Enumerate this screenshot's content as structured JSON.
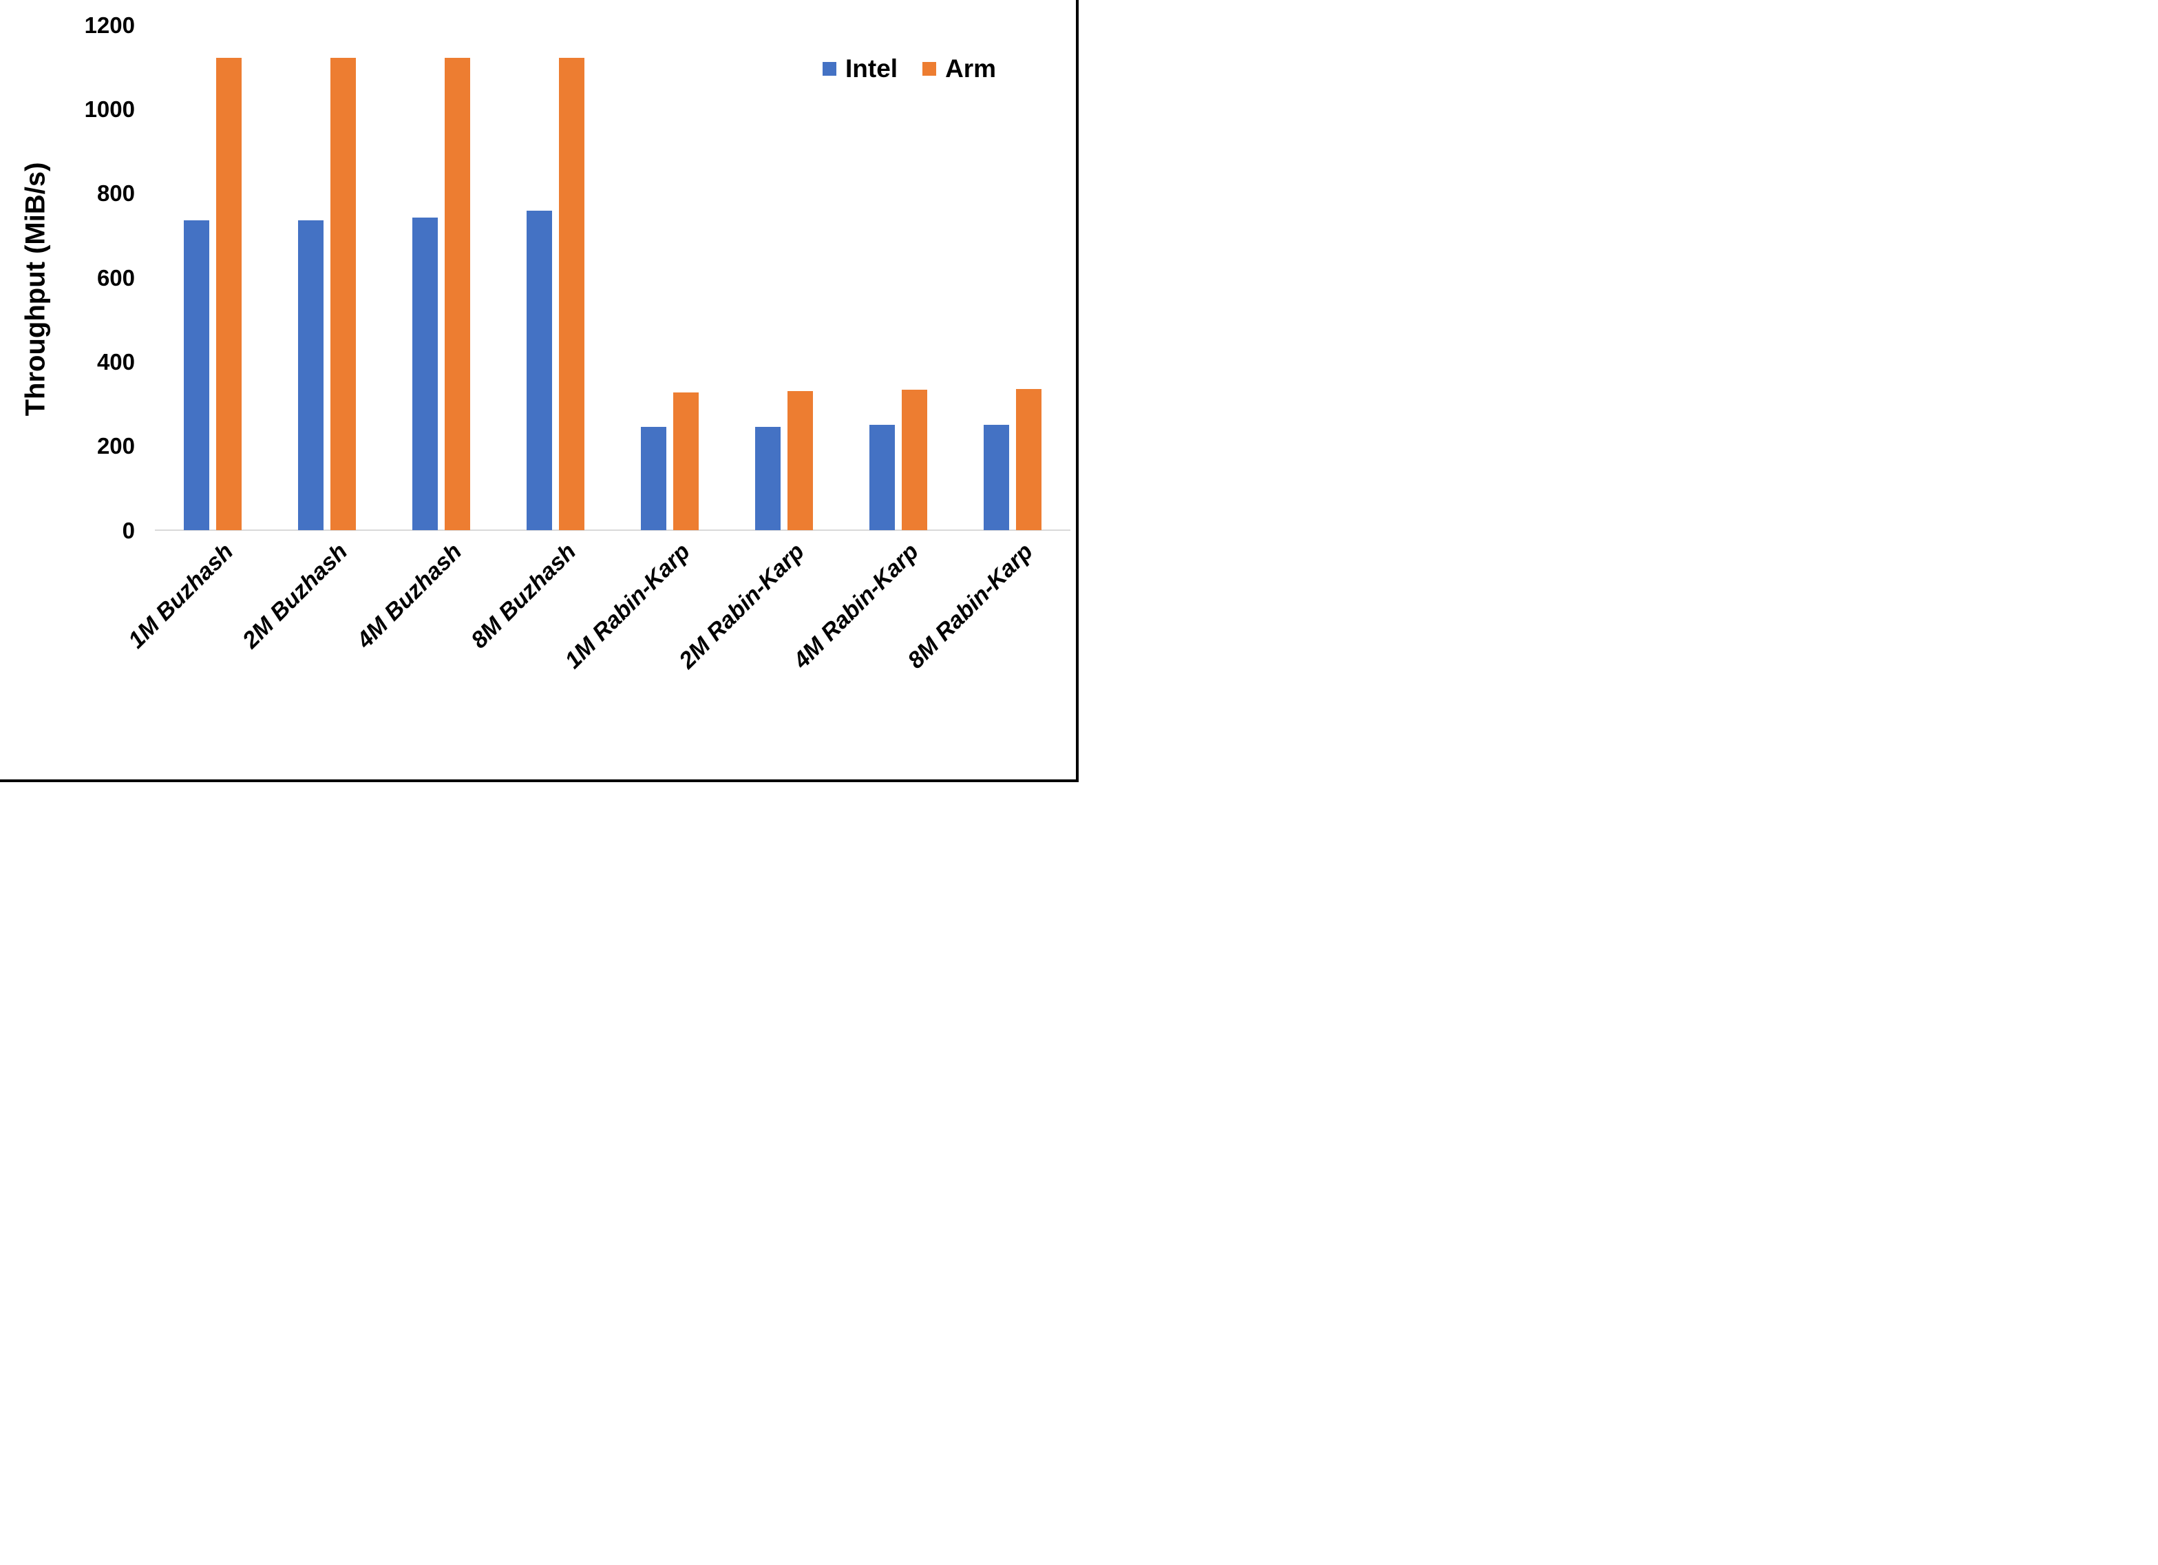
{
  "chart_data": {
    "type": "bar",
    "title": "",
    "xlabel": "",
    "ylabel": "Throughput (MiB/s)",
    "ylim": [
      0,
      1200
    ],
    "yticks": [
      0,
      200,
      400,
      600,
      800,
      1000,
      1200
    ],
    "grid": false,
    "legend_position": "top-right",
    "categories": [
      "1M Buzhash",
      "2M Buzhash",
      "4M Buzhash",
      "8M Buzhash",
      "1M Rabin-Karp",
      "2M Rabin-Karp",
      "4M Rabin-Karp",
      "8M Rabin-Karp"
    ],
    "series": [
      {
        "name": "Intel",
        "color": "#4472C4",
        "values": [
          735,
          735,
          743,
          759,
          246,
          246,
          250,
          251
        ]
      },
      {
        "name": "Arm",
        "color": "#ED7D31",
        "values": [
          1122,
          1122,
          1122,
          1122,
          327,
          330,
          333,
          335
        ]
      }
    ],
    "axis_line_color": "#D9D9D9",
    "text_color": "#000000",
    "background": "#FFFFFF",
    "frame_border_color": "#000000"
  }
}
